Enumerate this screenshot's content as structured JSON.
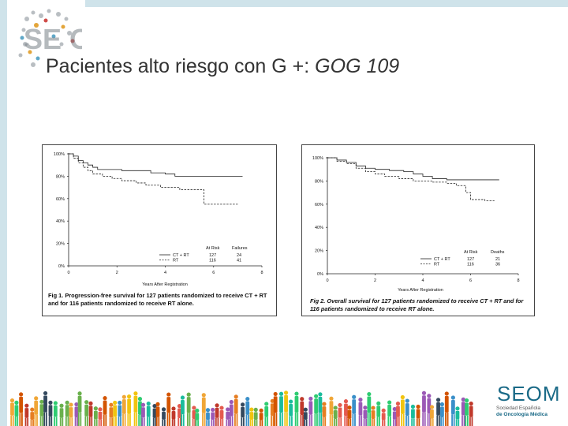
{
  "slide": {
    "title_main": "Pacientes alto riesgo con G +: ",
    "title_italic": "GOG 109",
    "logo_tl_text": "SE O",
    "logo_br_name": "SEOM",
    "logo_br_line1": "Sociedad Española",
    "logo_br_line2": "de Oncología Médica",
    "colors": {
      "accent": "#1a6a87",
      "frame": "#cfe3ea"
    }
  },
  "chart_data": [
    {
      "type": "line",
      "ylabels": [
        "100%",
        "80%",
        "60%",
        "40%",
        "20%",
        "0%"
      ],
      "yticks": [
        100,
        80,
        60,
        40,
        20,
        0
      ],
      "xticks": [
        0,
        2,
        4,
        6,
        8
      ],
      "ylim": [
        0,
        100
      ],
      "xlim": [
        0,
        8
      ],
      "xlabel": "Years After Registration",
      "legend": {
        "col_risk": "At Risk",
        "col_event": "Failures",
        "rows": [
          {
            "label": "CT + RT",
            "risk": "127",
            "events": "24"
          },
          {
            "label": "RT",
            "risk": "116",
            "events": "41"
          }
        ]
      },
      "caption": "Fig 1.   Progression-free survival for 127 patients randomized to receive CT + RT and for 116 patients randomized to receive RT alone.",
      "series": [
        {
          "name": "CT + RT",
          "style": "solid",
          "points": [
            [
              0,
              100
            ],
            [
              0.2,
              98
            ],
            [
              0.4,
              94
            ],
            [
              0.6,
              92
            ],
            [
              0.8,
              90
            ],
            [
              1.0,
              88
            ],
            [
              1.2,
              86
            ],
            [
              1.6,
              86
            ],
            [
              2.0,
              86
            ],
            [
              2.2,
              85
            ],
            [
              3.2,
              85
            ],
            [
              3.4,
              83
            ],
            [
              4.0,
              82
            ],
            [
              4.4,
              80
            ],
            [
              7.2,
              80
            ]
          ]
        },
        {
          "name": "RT",
          "style": "dashed",
          "points": [
            [
              0,
              100
            ],
            [
              0.2,
              96
            ],
            [
              0.4,
              92
            ],
            [
              0.6,
              88
            ],
            [
              0.8,
              85
            ],
            [
              1.0,
              82
            ],
            [
              1.4,
              80
            ],
            [
              1.8,
              78
            ],
            [
              2.2,
              76
            ],
            [
              2.8,
              74
            ],
            [
              3.2,
              72
            ],
            [
              3.8,
              70
            ],
            [
              4.6,
              68
            ],
            [
              5.5,
              68
            ],
            [
              5.6,
              55
            ],
            [
              7.0,
              55
            ]
          ]
        }
      ]
    },
    {
      "type": "line",
      "ylabels": [
        "100%",
        "80%",
        "60%",
        "40%",
        "20%",
        "0%"
      ],
      "yticks": [
        100,
        80,
        60,
        40,
        20,
        0
      ],
      "xticks": [
        0,
        2,
        4,
        6,
        8
      ],
      "ylim": [
        0,
        100
      ],
      "xlim": [
        0,
        8
      ],
      "xlabel": "Years After Registration",
      "legend": {
        "col_risk": "At Risk",
        "col_event": "Deaths",
        "rows": [
          {
            "label": "CT + RT",
            "risk": "127",
            "events": "21"
          },
          {
            "label": "RT",
            "risk": "116",
            "events": "36"
          }
        ]
      },
      "caption": "Fig 2.   Overall survival for 127 patients randomized to receive CT + RT and for 116 patients randomized to receive RT alone.",
      "series": [
        {
          "name": "CT + RT",
          "style": "solid",
          "points": [
            [
              0,
              100
            ],
            [
              0.4,
              98
            ],
            [
              0.8,
              96
            ],
            [
              1.2,
              93
            ],
            [
              1.6,
              91
            ],
            [
              2.0,
              90
            ],
            [
              2.6,
              89
            ],
            [
              3.2,
              88
            ],
            [
              3.6,
              86
            ],
            [
              4.0,
              84
            ],
            [
              4.4,
              82
            ],
            [
              5.0,
              81
            ],
            [
              5.8,
              81
            ],
            [
              7.2,
              81
            ]
          ]
        },
        {
          "name": "RT",
          "style": "dashed",
          "points": [
            [
              0,
              100
            ],
            [
              0.4,
              97
            ],
            [
              0.8,
              95
            ],
            [
              1.2,
              91
            ],
            [
              1.6,
              88
            ],
            [
              2.0,
              86
            ],
            [
              2.4,
              84
            ],
            [
              3.0,
              82
            ],
            [
              3.6,
              80
            ],
            [
              4.4,
              79
            ],
            [
              5.0,
              78
            ],
            [
              5.4,
              76
            ],
            [
              5.8,
              70
            ],
            [
              6.0,
              64
            ],
            [
              6.6,
              63
            ],
            [
              7.0,
              63
            ]
          ]
        }
      ]
    }
  ]
}
